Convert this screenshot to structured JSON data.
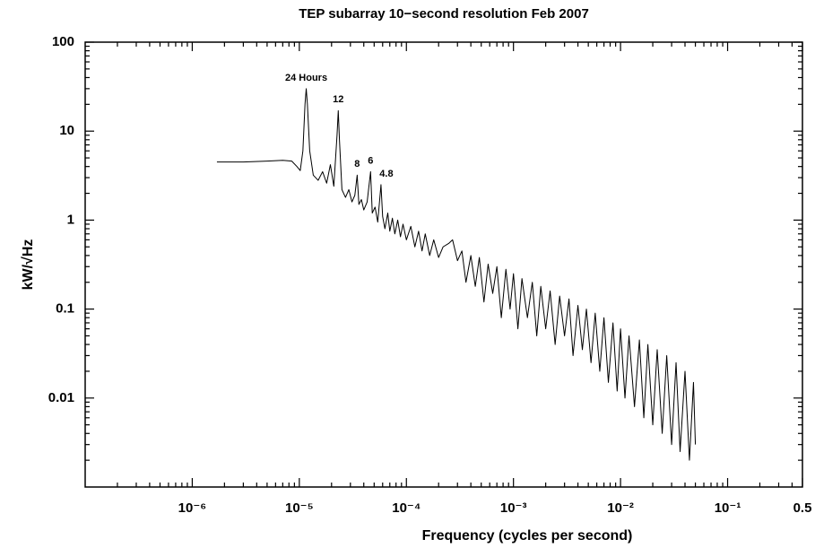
{
  "chart_data": {
    "type": "line",
    "title": "TEP subarray 10−second resolution Feb 2007",
    "x_label": "Frequency (cycles per second)",
    "y_label": "kW/√Hz",
    "x_scale": "log",
    "y_scale": "log",
    "color": "#000000",
    "xlim": [
      1e-07,
      0.5
    ],
    "ylim": [
      0.001,
      100
    ],
    "xticks": [
      {
        "value": 1e-06,
        "label": "10⁻⁶"
      },
      {
        "value": 1e-05,
        "label": "10⁻⁵"
      },
      {
        "value": 0.0001,
        "label": "10⁻⁴"
      },
      {
        "value": 0.001,
        "label": "10⁻³"
      },
      {
        "value": 0.01,
        "label": "10⁻²"
      },
      {
        "value": 0.1,
        "label": "10⁻¹"
      },
      0.5
    ],
    "yticks": [
      0.01,
      0.1,
      1,
      10,
      100
    ],
    "annotations": [
      {
        "text": "24 Hours",
        "x": 1.16e-05,
        "y": 30
      },
      {
        "text": "12",
        "x": 2.31e-05,
        "y": 17
      },
      {
        "text": "8",
        "x": 3.47e-05,
        "y": 3.2
      },
      {
        "text": "6",
        "x": 4.63e-05,
        "y": 3.5
      },
      {
        "text": "4.8",
        "x": 5.79e-05,
        "y": 2.5
      }
    ],
    "x": [
      1.7e-06,
      3e-06,
      5e-06,
      7e-06,
      8.5e-06,
      9.5e-06,
      1.02e-05,
      1.08e-05,
      1.13e-05,
      1.16e-05,
      1.19e-05,
      1.25e-05,
      1.35e-05,
      1.5e-05,
      1.65e-05,
      1.8e-05,
      1.95e-05,
      2.1e-05,
      2.25e-05,
      2.31e-05,
      2.37e-05,
      2.5e-05,
      2.7e-05,
      2.9e-05,
      3.1e-05,
      3.3e-05,
      3.47e-05,
      3.6e-05,
      3.8e-05,
      4e-05,
      4.3e-05,
      4.63e-05,
      4.8e-05,
      5.1e-05,
      5.4e-05,
      5.79e-05,
      6e-05,
      6.3e-05,
      6.7e-05,
      7e-05,
      7.4e-05,
      7.8e-05,
      8.3e-05,
      8.8e-05,
      9.3e-05,
      0.0001,
      0.00011,
      0.00012,
      0.00013,
      0.00014,
      0.00015,
      0.000165,
      0.00018,
      0.0002,
      0.00022,
      0.00025,
      0.00027,
      0.0003,
      0.00033,
      0.00036,
      0.0004,
      0.00044,
      0.00048,
      0.00053,
      0.00058,
      0.00064,
      0.0007,
      0.00077,
      0.00085,
      0.00093,
      0.001,
      0.0011,
      0.0012,
      0.00135,
      0.0015,
      0.00165,
      0.0018,
      0.002,
      0.0022,
      0.00245,
      0.0027,
      0.003,
      0.0033,
      0.0036,
      0.004,
      0.0044,
      0.0048,
      0.0053,
      0.0058,
      0.0064,
      0.007,
      0.0077,
      0.0085,
      0.0093,
      0.01,
      0.011,
      0.012,
      0.0135,
      0.015,
      0.0165,
      0.018,
      0.02,
      0.022,
      0.0245,
      0.027,
      0.03,
      0.033,
      0.036,
      0.04,
      0.044,
      0.048,
      0.05
    ],
    "values": [
      4.5,
      4.5,
      4.6,
      4.7,
      4.6,
      4.0,
      3.6,
      6,
      20,
      30,
      20,
      6,
      3.2,
      2.8,
      3.5,
      2.6,
      4.2,
      2.4,
      9,
      17,
      8,
      2.2,
      1.8,
      2.2,
      1.6,
      1.9,
      3.2,
      1.5,
      1.7,
      1.3,
      1.6,
      3.5,
      1.2,
      1.4,
      0.95,
      2.5,
      1.1,
      0.8,
      1.2,
      0.75,
      1.05,
      0.7,
      1.0,
      0.65,
      0.9,
      0.6,
      0.85,
      0.5,
      0.75,
      0.45,
      0.7,
      0.4,
      0.6,
      0.38,
      0.5,
      0.55,
      0.6,
      0.35,
      0.45,
      0.2,
      0.4,
      0.18,
      0.38,
      0.12,
      0.32,
      0.15,
      0.3,
      0.08,
      0.28,
      0.1,
      0.25,
      0.06,
      0.22,
      0.08,
      0.2,
      0.05,
      0.18,
      0.06,
      0.16,
      0.04,
      0.14,
      0.05,
      0.13,
      0.03,
      0.11,
      0.035,
      0.1,
      0.025,
      0.09,
      0.02,
      0.08,
      0.015,
      0.07,
      0.012,
      0.06,
      0.01,
      0.05,
      0.008,
      0.045,
      0.006,
      0.04,
      0.005,
      0.035,
      0.004,
      0.03,
      0.003,
      0.025,
      0.0025,
      0.02,
      0.002,
      0.015,
      0.003
    ]
  }
}
